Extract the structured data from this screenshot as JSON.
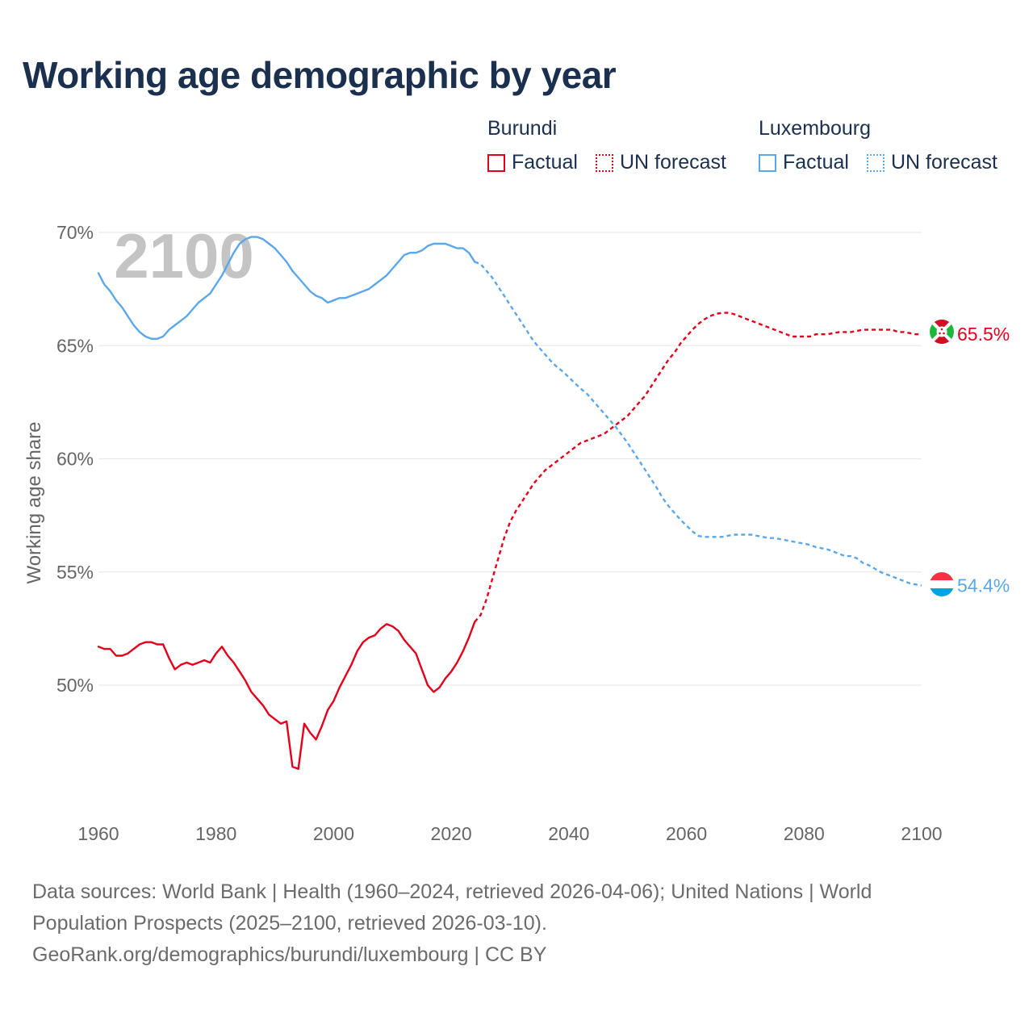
{
  "title": "Working age demographic by year",
  "legend": {
    "groups": [
      {
        "name": "Burundi",
        "color": "#e3001b",
        "factual_label": "Factual",
        "forecast_label": "UN forecast"
      },
      {
        "name": "Luxembourg",
        "color": "#5aa7ea",
        "factual_label": "Factual",
        "forecast_label": "UN forecast"
      }
    ]
  },
  "chart_data": {
    "type": "line",
    "ylabel": "Working age share",
    "xlabel": "",
    "xlim": [
      1960,
      2100
    ],
    "ylim": [
      45.5,
      71.5
    ],
    "x_ticks": [
      1960,
      1980,
      2000,
      2020,
      2040,
      2060,
      2080,
      2100
    ],
    "y_ticks": [
      50,
      55,
      60,
      65,
      70
    ],
    "y_tick_labels": [
      "50%",
      "55%",
      "60%",
      "65%",
      "70%"
    ],
    "year_watermark": "2100",
    "forecast_start": 2024,
    "series": [
      {
        "name": "Burundi",
        "color": "#e3001b",
        "end_label": "65.5%",
        "factual": [
          [
            1960,
            51.7
          ],
          [
            1961,
            51.6
          ],
          [
            1962,
            51.6
          ],
          [
            1963,
            51.3
          ],
          [
            1964,
            51.3
          ],
          [
            1965,
            51.4
          ],
          [
            1966,
            51.6
          ],
          [
            1967,
            51.8
          ],
          [
            1968,
            51.9
          ],
          [
            1969,
            51.9
          ],
          [
            1970,
            51.8
          ],
          [
            1971,
            51.8
          ],
          [
            1972,
            51.2
          ],
          [
            1973,
            50.7
          ],
          [
            1974,
            50.9
          ],
          [
            1975,
            51.0
          ],
          [
            1976,
            50.9
          ],
          [
            1977,
            51.0
          ],
          [
            1978,
            51.1
          ],
          [
            1979,
            51.0
          ],
          [
            1980,
            51.4
          ],
          [
            1981,
            51.7
          ],
          [
            1982,
            51.3
          ],
          [
            1983,
            51.0
          ],
          [
            1984,
            50.6
          ],
          [
            1985,
            50.2
          ],
          [
            1986,
            49.7
          ],
          [
            1987,
            49.4
          ],
          [
            1988,
            49.1
          ],
          [
            1989,
            48.7
          ],
          [
            1990,
            48.5
          ],
          [
            1991,
            48.3
          ],
          [
            1992,
            48.4
          ],
          [
            1993,
            46.4
          ],
          [
            1994,
            46.3
          ],
          [
            1995,
            48.3
          ],
          [
            1996,
            47.9
          ],
          [
            1997,
            47.6
          ],
          [
            1998,
            48.2
          ],
          [
            1999,
            48.9
          ],
          [
            2000,
            49.3
          ],
          [
            2001,
            49.9
          ],
          [
            2002,
            50.4
          ],
          [
            2003,
            50.9
          ],
          [
            2004,
            51.5
          ],
          [
            2005,
            51.9
          ],
          [
            2006,
            52.1
          ],
          [
            2007,
            52.2
          ],
          [
            2008,
            52.5
          ],
          [
            2009,
            52.7
          ],
          [
            2010,
            52.6
          ],
          [
            2011,
            52.4
          ],
          [
            2012,
            52.0
          ],
          [
            2013,
            51.7
          ],
          [
            2014,
            51.4
          ],
          [
            2015,
            50.7
          ],
          [
            2016,
            50.0
          ],
          [
            2017,
            49.7
          ],
          [
            2018,
            49.9
          ],
          [
            2019,
            50.3
          ],
          [
            2020,
            50.6
          ],
          [
            2021,
            51.0
          ],
          [
            2022,
            51.5
          ],
          [
            2023,
            52.1
          ],
          [
            2024,
            52.8
          ]
        ],
        "forecast": [
          [
            2024,
            52.8
          ],
          [
            2025,
            53.1
          ],
          [
            2026,
            53.8
          ],
          [
            2027,
            54.7
          ],
          [
            2028,
            55.6
          ],
          [
            2029,
            56.5
          ],
          [
            2030,
            57.2
          ],
          [
            2031,
            57.7
          ],
          [
            2032,
            58.1
          ],
          [
            2033,
            58.5
          ],
          [
            2034,
            58.9
          ],
          [
            2035,
            59.2
          ],
          [
            2036,
            59.5
          ],
          [
            2037,
            59.7
          ],
          [
            2038,
            59.9
          ],
          [
            2039,
            60.1
          ],
          [
            2040,
            60.3
          ],
          [
            2041,
            60.5
          ],
          [
            2042,
            60.7
          ],
          [
            2043,
            60.8
          ],
          [
            2044,
            60.9
          ],
          [
            2045,
            61.0
          ],
          [
            2046,
            61.1
          ],
          [
            2047,
            61.3
          ],
          [
            2048,
            61.5
          ],
          [
            2049,
            61.7
          ],
          [
            2050,
            61.9
          ],
          [
            2051,
            62.2
          ],
          [
            2052,
            62.5
          ],
          [
            2053,
            62.8
          ],
          [
            2054,
            63.2
          ],
          [
            2055,
            63.6
          ],
          [
            2056,
            64.0
          ],
          [
            2057,
            64.4
          ],
          [
            2058,
            64.7
          ],
          [
            2059,
            65.1
          ],
          [
            2060,
            65.4
          ],
          [
            2061,
            65.7
          ],
          [
            2062,
            65.95
          ],
          [
            2063,
            66.15
          ],
          [
            2064,
            66.3
          ],
          [
            2065,
            66.4
          ],
          [
            2066,
            66.45
          ],
          [
            2067,
            66.45
          ],
          [
            2068,
            66.4
          ],
          [
            2069,
            66.3
          ],
          [
            2070,
            66.2
          ],
          [
            2071,
            66.1
          ],
          [
            2072,
            66.0
          ],
          [
            2073,
            65.9
          ],
          [
            2074,
            65.8
          ],
          [
            2075,
            65.7
          ],
          [
            2076,
            65.6
          ],
          [
            2077,
            65.5
          ],
          [
            2078,
            65.4
          ],
          [
            2079,
            65.4
          ],
          [
            2080,
            65.4
          ],
          [
            2081,
            65.4
          ],
          [
            2082,
            65.5
          ],
          [
            2083,
            65.5
          ],
          [
            2084,
            65.5
          ],
          [
            2085,
            65.55
          ],
          [
            2086,
            65.6
          ],
          [
            2087,
            65.6
          ],
          [
            2088,
            65.6
          ],
          [
            2089,
            65.65
          ],
          [
            2090,
            65.7
          ],
          [
            2091,
            65.7
          ],
          [
            2092,
            65.7
          ],
          [
            2093,
            65.7
          ],
          [
            2094,
            65.7
          ],
          [
            2095,
            65.7
          ],
          [
            2096,
            65.6
          ],
          [
            2097,
            65.6
          ],
          [
            2098,
            65.55
          ],
          [
            2099,
            65.5
          ],
          [
            2100,
            65.5
          ]
        ]
      },
      {
        "name": "Luxembourg",
        "color": "#5aa7ea",
        "end_label": "54.4%",
        "factual": [
          [
            1960,
            68.2
          ],
          [
            1961,
            67.7
          ],
          [
            1962,
            67.4
          ],
          [
            1963,
            67.0
          ],
          [
            1964,
            66.7
          ],
          [
            1965,
            66.3
          ],
          [
            1966,
            65.9
          ],
          [
            1967,
            65.6
          ],
          [
            1968,
            65.4
          ],
          [
            1969,
            65.3
          ],
          [
            1970,
            65.3
          ],
          [
            1971,
            65.4
          ],
          [
            1972,
            65.7
          ],
          [
            1973,
            65.9
          ],
          [
            1974,
            66.1
          ],
          [
            1975,
            66.3
          ],
          [
            1976,
            66.6
          ],
          [
            1977,
            66.9
          ],
          [
            1978,
            67.1
          ],
          [
            1979,
            67.3
          ],
          [
            1980,
            67.7
          ],
          [
            1981,
            68.1
          ],
          [
            1982,
            68.6
          ],
          [
            1983,
            69.1
          ],
          [
            1984,
            69.5
          ],
          [
            1985,
            69.7
          ],
          [
            1986,
            69.8
          ],
          [
            1987,
            69.8
          ],
          [
            1988,
            69.7
          ],
          [
            1989,
            69.5
          ],
          [
            1990,
            69.3
          ],
          [
            1991,
            69.0
          ],
          [
            1992,
            68.7
          ],
          [
            1993,
            68.3
          ],
          [
            1994,
            68.0
          ],
          [
            1995,
            67.7
          ],
          [
            1996,
            67.4
          ],
          [
            1997,
            67.2
          ],
          [
            1998,
            67.1
          ],
          [
            1999,
            66.9
          ],
          [
            2000,
            67.0
          ],
          [
            2001,
            67.1
          ],
          [
            2002,
            67.1
          ],
          [
            2003,
            67.2
          ],
          [
            2004,
            67.3
          ],
          [
            2005,
            67.4
          ],
          [
            2006,
            67.5
          ],
          [
            2007,
            67.7
          ],
          [
            2008,
            67.9
          ],
          [
            2009,
            68.1
          ],
          [
            2010,
            68.4
          ],
          [
            2011,
            68.7
          ],
          [
            2012,
            69.0
          ],
          [
            2013,
            69.1
          ],
          [
            2014,
            69.1
          ],
          [
            2015,
            69.2
          ],
          [
            2016,
            69.4
          ],
          [
            2017,
            69.5
          ],
          [
            2018,
            69.5
          ],
          [
            2019,
            69.5
          ],
          [
            2020,
            69.4
          ],
          [
            2021,
            69.3
          ],
          [
            2022,
            69.3
          ],
          [
            2023,
            69.1
          ],
          [
            2024,
            68.7
          ]
        ],
        "forecast": [
          [
            2024,
            68.7
          ],
          [
            2025,
            68.6
          ],
          [
            2026,
            68.3
          ],
          [
            2027,
            68.0
          ],
          [
            2028,
            67.6
          ],
          [
            2029,
            67.2
          ],
          [
            2030,
            66.8
          ],
          [
            2031,
            66.4
          ],
          [
            2032,
            66.0
          ],
          [
            2033,
            65.6
          ],
          [
            2034,
            65.2
          ],
          [
            2035,
            64.9
          ],
          [
            2036,
            64.6
          ],
          [
            2037,
            64.3
          ],
          [
            2038,
            64.05
          ],
          [
            2039,
            63.85
          ],
          [
            2040,
            63.6
          ],
          [
            2041,
            63.35
          ],
          [
            2042,
            63.1
          ],
          [
            2043,
            62.9
          ],
          [
            2044,
            62.6
          ],
          [
            2045,
            62.3
          ],
          [
            2046,
            62.0
          ],
          [
            2047,
            61.7
          ],
          [
            2048,
            61.4
          ],
          [
            2049,
            61.05
          ],
          [
            2050,
            60.7
          ],
          [
            2051,
            60.3
          ],
          [
            2052,
            59.9
          ],
          [
            2053,
            59.5
          ],
          [
            2054,
            59.1
          ],
          [
            2055,
            58.7
          ],
          [
            2056,
            58.25
          ],
          [
            2057,
            57.9
          ],
          [
            2058,
            57.6
          ],
          [
            2059,
            57.3
          ],
          [
            2060,
            57.05
          ],
          [
            2061,
            56.8
          ],
          [
            2062,
            56.6
          ],
          [
            2063,
            56.55
          ],
          [
            2064,
            56.55
          ],
          [
            2065,
            56.55
          ],
          [
            2066,
            56.55
          ],
          [
            2067,
            56.6
          ],
          [
            2068,
            56.65
          ],
          [
            2069,
            56.65
          ],
          [
            2070,
            56.65
          ],
          [
            2071,
            56.65
          ],
          [
            2072,
            56.6
          ],
          [
            2073,
            56.55
          ],
          [
            2074,
            56.5
          ],
          [
            2075,
            56.5
          ],
          [
            2076,
            56.45
          ],
          [
            2077,
            56.4
          ],
          [
            2078,
            56.35
          ],
          [
            2079,
            56.3
          ],
          [
            2080,
            56.25
          ],
          [
            2081,
            56.2
          ],
          [
            2082,
            56.1
          ],
          [
            2083,
            56.05
          ],
          [
            2084,
            56.0
          ],
          [
            2085,
            55.9
          ],
          [
            2086,
            55.8
          ],
          [
            2087,
            55.7
          ],
          [
            2088,
            55.7
          ],
          [
            2089,
            55.6
          ],
          [
            2090,
            55.4
          ],
          [
            2091,
            55.3
          ],
          [
            2092,
            55.15
          ],
          [
            2093,
            55.0
          ],
          [
            2094,
            54.9
          ],
          [
            2095,
            54.8
          ],
          [
            2096,
            54.7
          ],
          [
            2097,
            54.6
          ],
          [
            2098,
            54.5
          ],
          [
            2099,
            54.45
          ],
          [
            2100,
            54.4
          ]
        ]
      }
    ]
  },
  "footer": {
    "line1": "Data sources: World Bank | Health (1960–2024, retrieved 2026-04-06); United Nations | World",
    "line2": "Population Prospects (2025–2100, retrieved 2026-03-10).",
    "line3": "GeoRank.org/demographics/burundi/luxembourg | CC BY"
  }
}
